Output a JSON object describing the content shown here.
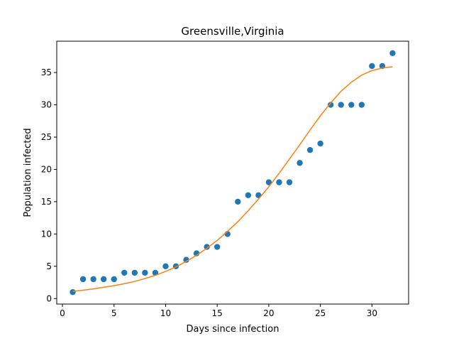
{
  "chart_data": {
    "type": "scatter",
    "title": "Greensville,Virginia",
    "xlabel": "Days since infection",
    "ylabel": "Population infected",
    "xlim": [
      -0.55,
      33.55
    ],
    "ylim": [
      -0.85,
      39.85
    ],
    "xticks": [
      0,
      5,
      10,
      15,
      20,
      25,
      30
    ],
    "yticks": [
      0,
      5,
      10,
      15,
      20,
      25,
      30,
      35
    ],
    "grid": false,
    "series": [
      {
        "kind": "scatter",
        "color": "#1f77b4",
        "x": [
          1,
          2,
          3,
          4,
          5,
          6,
          7,
          8,
          9,
          10,
          11,
          12,
          13,
          14,
          15,
          16,
          17,
          18,
          19,
          20,
          21,
          22,
          23,
          24,
          25,
          26,
          27,
          28,
          29,
          30,
          31,
          32
        ],
        "y": [
          1,
          3,
          3,
          3,
          3,
          4,
          4,
          4,
          4,
          5,
          5,
          6,
          7,
          8,
          8,
          10,
          15,
          16,
          16,
          18,
          18,
          18,
          21,
          23,
          24,
          30,
          30,
          30,
          30,
          36,
          36,
          38
        ]
      },
      {
        "kind": "line",
        "color": "#ff7f0e",
        "x": [
          1,
          2,
          3,
          4,
          5,
          6,
          7,
          8,
          9,
          10,
          11,
          12,
          13,
          14,
          15,
          16,
          17,
          18,
          19,
          20,
          21,
          22,
          23,
          24,
          25,
          26,
          27,
          28,
          29,
          30,
          31,
          32
        ],
        "y": [
          1.1,
          1.3,
          1.5,
          1.75,
          2.0,
          2.3,
          2.65,
          3.1,
          3.6,
          4.2,
          4.9,
          5.75,
          6.7,
          7.8,
          9.0,
          10.4,
          11.9,
          13.6,
          15.4,
          17.3,
          19.4,
          21.6,
          23.8,
          26.1,
          28.3,
          30.3,
          32.1,
          33.5,
          34.6,
          35.3,
          35.7,
          35.9
        ]
      }
    ]
  }
}
